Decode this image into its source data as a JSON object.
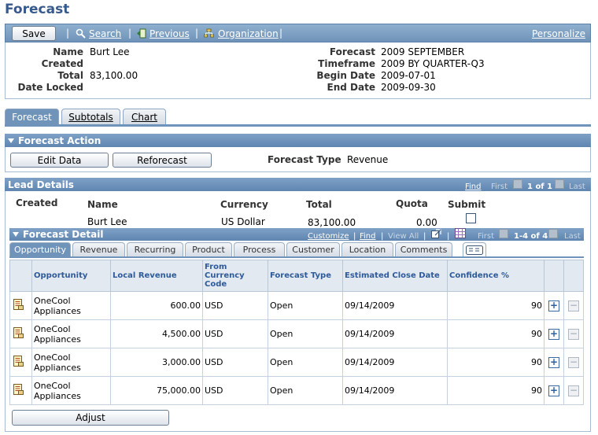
{
  "page": {
    "title": "Forecast"
  },
  "toolbar": {
    "save_label": "Save",
    "search_label": "Search",
    "previous_label": "Previous",
    "organization_label": "Organization",
    "personalize_label": "Personalize"
  },
  "header": {
    "name_label": "Name",
    "name_value": "Burt Lee",
    "created_label": "Created",
    "created_value": "",
    "total_label": "Total",
    "total_value": "83,100.00",
    "date_locked_label": "Date Locked",
    "date_locked_value": "",
    "forecast_label": "Forecast",
    "forecast_value": "2009 SEPTEMBER",
    "timeframe_label": "Timeframe",
    "timeframe_value": "2009 BY QUARTER-Q3",
    "begin_date_label": "Begin Date",
    "begin_date_value": "2009-07-01",
    "end_date_label": "End Date",
    "end_date_value": "2009-09-30"
  },
  "page_tabs": [
    {
      "label": "Forecast",
      "active": true
    },
    {
      "label": "Subtotals",
      "active": false
    },
    {
      "label": "Chart",
      "active": false
    }
  ],
  "forecast_action": {
    "title": "Forecast Action",
    "edit_data_label": "Edit Data",
    "reforecast_label": "Reforecast",
    "forecast_type_label": "Forecast Type",
    "forecast_type_value": "Revenue"
  },
  "lead_details": {
    "title": "Lead Details",
    "find_label": "Find",
    "first_label": "First",
    "count_label": "1 of 1",
    "last_label": "Last",
    "col_created": "Created",
    "col_name": "Name",
    "col_currency": "Currency",
    "col_total": "Total",
    "col_quota": "Quota",
    "col_submit": "Submit",
    "row_name": "Burt Lee",
    "row_currency": "US Dollar",
    "row_total": "83,100.00",
    "row_quota": "0.00"
  },
  "forecast_detail": {
    "title": "Forecast Detail",
    "customize_label": "Customize",
    "find_label": "Find",
    "view_all_label": "View All",
    "first_label": "First",
    "count_label": "1-4 of 4",
    "last_label": "Last",
    "tabs": [
      "Opportunity",
      "Revenue",
      "Recurring",
      "Product",
      "Process",
      "Customer",
      "Location",
      "Comments"
    ],
    "columns": {
      "opportunity": "Opportunity",
      "local_revenue": "Local Revenue",
      "from_currency": "From Currency Code",
      "forecast_type": "Forecast Type",
      "close_date": "Estimated Close Date",
      "confidence": "Confidence %"
    },
    "rows": [
      {
        "opportunity": "OneCool Appliances",
        "local_revenue": "600.00",
        "currency": "USD",
        "forecast_type": "Open",
        "close_date": "09/14/2009",
        "confidence": "90"
      },
      {
        "opportunity": "OneCool Appliances",
        "local_revenue": "4,500.00",
        "currency": "USD",
        "forecast_type": "Open",
        "close_date": "09/14/2009",
        "confidence": "90"
      },
      {
        "opportunity": "OneCool Appliances",
        "local_revenue": "3,000.00",
        "currency": "USD",
        "forecast_type": "Open",
        "close_date": "09/14/2009",
        "confidence": "90"
      },
      {
        "opportunity": "OneCool Appliances",
        "local_revenue": "75,000.00",
        "currency": "USD",
        "forecast_type": "Open",
        "close_date": "09/14/2009",
        "confidence": "90"
      }
    ],
    "adjust_label": "Adjust"
  }
}
